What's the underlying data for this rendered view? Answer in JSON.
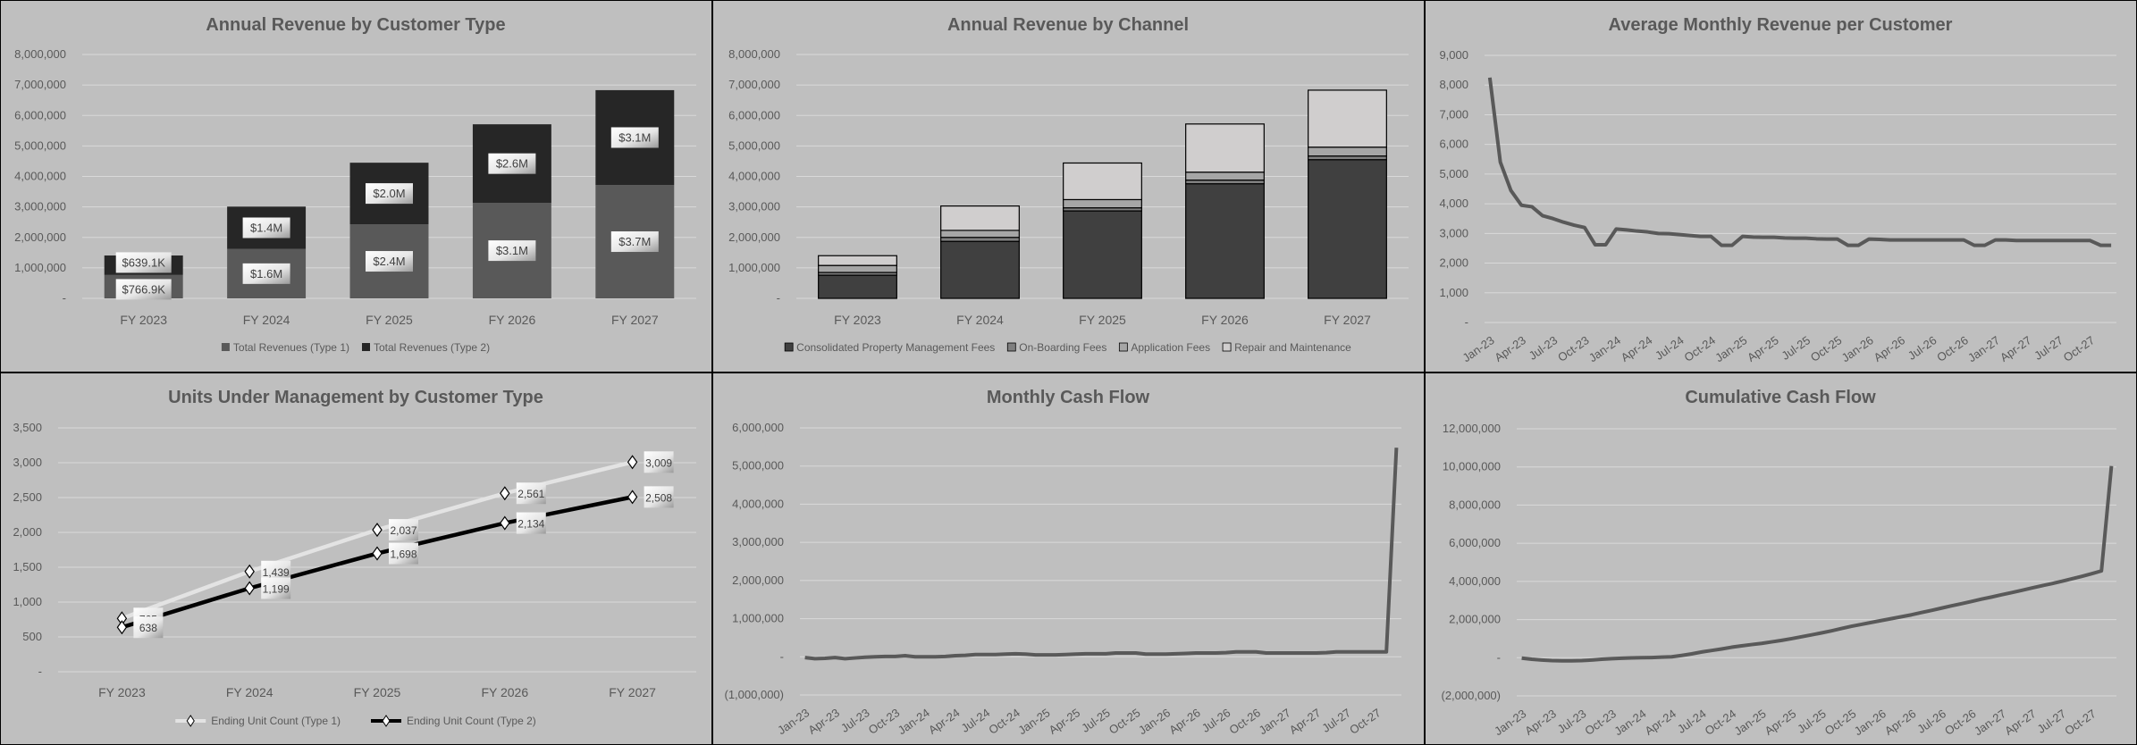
{
  "colors": {
    "background": "#bfbfbf",
    "gridline": "#d9d9d9",
    "text": "#595959",
    "type1_bar": "#595959",
    "type2_bar": "#262626",
    "line": "#595959",
    "units_type1": "#e3e3e3",
    "units_type2": "#000000"
  },
  "chart_data": [
    {
      "type": "bar",
      "stacked": true,
      "title": "Annual Revenue by Customer Type",
      "categories": [
        "FY 2023",
        "FY 2024",
        "FY 2025",
        "FY 2026",
        "FY 2027"
      ],
      "ylim": [
        0,
        8000000
      ],
      "yticks": [
        "-",
        "1,000,000",
        "2,000,000",
        "3,000,000",
        "4,000,000",
        "5,000,000",
        "6,000,000",
        "7,000,000",
        "8,000,000"
      ],
      "grid": true,
      "legend": "bottom",
      "series": [
        {
          "name": "Total Revenues (Type 1)",
          "color": "#595959",
          "values": [
            766900,
            1620000,
            2430000,
            3130000,
            3720000
          ],
          "labels": [
            "$766.9K",
            "$1.6M",
            "$2.4M",
            "$3.1M",
            "$3.7M"
          ]
        },
        {
          "name": "Total Revenues (Type 2)",
          "color": "#262626",
          "values": [
            639100,
            1390000,
            2020000,
            2580000,
            3110000
          ],
          "labels": [
            "$639.1K",
            "$1.4M",
            "$2.0M",
            "$2.6M",
            "$3.1M"
          ]
        }
      ]
    },
    {
      "type": "bar",
      "stacked": true,
      "title": "Annual Revenue by Channel",
      "categories": [
        "FY 2023",
        "FY 2024",
        "FY 2025",
        "FY 2026",
        "FY 2027"
      ],
      "ylim": [
        0,
        8000000
      ],
      "yticks": [
        "-",
        "1,000,000",
        "2,000,000",
        "3,000,000",
        "4,000,000",
        "5,000,000",
        "6,000,000",
        "7,000,000",
        "8,000,000"
      ],
      "grid": true,
      "legend": "bottom",
      "series": [
        {
          "name": "Consolidated Property Management Fees",
          "color": "#404040",
          "values": [
            760000,
            1870000,
            2870000,
            3760000,
            4550000
          ]
        },
        {
          "name": "On-Boarding Fees",
          "color": "#7f7f7f",
          "values": [
            90000,
            130000,
            100000,
            120000,
            120000
          ]
        },
        {
          "name": "Application Fees",
          "color": "#a6a6a6",
          "values": [
            230000,
            230000,
            270000,
            260000,
            290000
          ]
        },
        {
          "name": "Repair and Maintenance",
          "color": "#d0cece",
          "values": [
            320000,
            800000,
            1200000,
            1580000,
            1870000
          ]
        }
      ]
    },
    {
      "type": "line",
      "title": "Average Monthly Revenue per Customer",
      "xticks": [
        "Jan-23",
        "Apr-23",
        "Jul-23",
        "Oct-23",
        "Jan-24",
        "Apr-24",
        "Jul-24",
        "Oct-24",
        "Jan-25",
        "Apr-25",
        "Jul-25",
        "Oct-25",
        "Jan-26",
        "Apr-26",
        "Jul-26",
        "Oct-26",
        "Jan-27",
        "Apr-27",
        "Jul-27",
        "Oct-27"
      ],
      "ylim": [
        0,
        9000
      ],
      "yticks": [
        "-",
        "1,000",
        "2,000",
        "3,000",
        "4,000",
        "5,000",
        "6,000",
        "7,000",
        "8,000",
        "9,000"
      ],
      "grid": true,
      "series": [
        {
          "color": "#595959",
          "values": [
            8250,
            5400,
            4450,
            3950,
            3900,
            3600,
            3500,
            3380,
            3280,
            3200,
            2620,
            2620,
            3150,
            3120,
            3080,
            3050,
            3000,
            2990,
            2960,
            2930,
            2900,
            2900,
            2600,
            2600,
            2900,
            2880,
            2870,
            2870,
            2850,
            2840,
            2840,
            2820,
            2810,
            2810,
            2600,
            2600,
            2810,
            2800,
            2780,
            2780,
            2780,
            2780,
            2780,
            2780,
            2780,
            2780,
            2600,
            2600,
            2780,
            2780,
            2760,
            2760,
            2760,
            2760,
            2760,
            2760,
            2760,
            2760,
            2600,
            2600
          ]
        }
      ]
    },
    {
      "type": "line",
      "title": "Units Under Management by Customer Type",
      "categories": [
        "FY 2023",
        "FY 2024",
        "FY 2025",
        "FY 2026",
        "FY 2027"
      ],
      "ylim": [
        0,
        3500
      ],
      "yticks": [
        "-",
        "500",
        "1,000",
        "1,500",
        "2,000",
        "2,500",
        "3,000",
        "3,500"
      ],
      "grid": true,
      "legend": "bottom",
      "series": [
        {
          "name": "Ending Unit Count (Type 1)",
          "color": "#e3e3e3",
          "values": [
            765,
            1439,
            2037,
            2561,
            3009
          ],
          "labels": [
            "765",
            "1,439",
            "2,037",
            "2,561",
            "3,009"
          ]
        },
        {
          "name": "Ending Unit Count (Type 2)",
          "color": "#000000",
          "values": [
            638,
            1199,
            1698,
            2134,
            2508
          ],
          "labels": [
            "638",
            "1,199",
            "1,698",
            "2,134",
            "2,508"
          ]
        }
      ]
    },
    {
      "type": "line",
      "title": "Monthly Cash Flow",
      "xticks": [
        "Jan-23",
        "Apr-23",
        "Jul-23",
        "Oct-23",
        "Jan-24",
        "Apr-24",
        "Jul-24",
        "Oct-24",
        "Jan-25",
        "Apr-25",
        "Jul-25",
        "Oct-25",
        "Jan-26",
        "Apr-26",
        "Jul-26",
        "Oct-26",
        "Jan-27",
        "Apr-27",
        "Jul-27",
        "Oct-27"
      ],
      "ylim": [
        -1000000,
        6000000
      ],
      "yticks": [
        "(1,000,000)",
        "-",
        "1,000,000",
        "2,000,000",
        "3,000,000",
        "4,000,000",
        "5,000,000",
        "6,000,000"
      ],
      "grid": true,
      "series": [
        {
          "color": "#595959",
          "values": [
            -20000,
            -50000,
            -40000,
            -20000,
            -50000,
            -30000,
            -10000,
            0,
            10000,
            10000,
            30000,
            0,
            0,
            0,
            10000,
            30000,
            40000,
            60000,
            60000,
            60000,
            70000,
            80000,
            70000,
            50000,
            50000,
            50000,
            60000,
            70000,
            80000,
            80000,
            80000,
            100000,
            100000,
            100000,
            70000,
            70000,
            70000,
            80000,
            90000,
            100000,
            100000,
            100000,
            110000,
            130000,
            130000,
            130000,
            100000,
            100000,
            100000,
            100000,
            100000,
            100000,
            110000,
            130000,
            130000,
            130000,
            130000,
            130000,
            130000,
            5480000
          ]
        }
      ]
    },
    {
      "type": "line",
      "title": "Cumulative Cash Flow",
      "xticks": [
        "Jan-23",
        "Apr-23",
        "Jul-23",
        "Oct-23",
        "Jan-24",
        "Apr-24",
        "Jul-24",
        "Oct-24",
        "Jan-25",
        "Apr-25",
        "Jul-25",
        "Oct-25",
        "Jan-26",
        "Apr-26",
        "Jul-26",
        "Oct-26",
        "Jan-27",
        "Apr-27",
        "Jul-27",
        "Oct-27"
      ],
      "ylim": [
        -2000000,
        12000000
      ],
      "yticks": [
        "(2,000,000)",
        "-",
        "2,000,000",
        "4,000,000",
        "6,000,000",
        "8,000,000",
        "10,000,000",
        "12,000,000"
      ],
      "grid": true,
      "series": [
        {
          "color": "#595959",
          "values": [
            -20000,
            -80000,
            -120000,
            -150000,
            -160000,
            -160000,
            -150000,
            -120000,
            -80000,
            -50000,
            -30000,
            -10000,
            0,
            10000,
            30000,
            50000,
            120000,
            200000,
            300000,
            380000,
            460000,
            550000,
            620000,
            690000,
            750000,
            830000,
            910000,
            1000000,
            1100000,
            1200000,
            1300000,
            1410000,
            1530000,
            1650000,
            1750000,
            1850000,
            1950000,
            2050000,
            2150000,
            2250000,
            2370000,
            2480000,
            2600000,
            2720000,
            2830000,
            2950000,
            3070000,
            3180000,
            3300000,
            3410000,
            3530000,
            3650000,
            3770000,
            3880000,
            4000000,
            4130000,
            4260000,
            4400000,
            4550000,
            10050000
          ]
        }
      ]
    }
  ]
}
